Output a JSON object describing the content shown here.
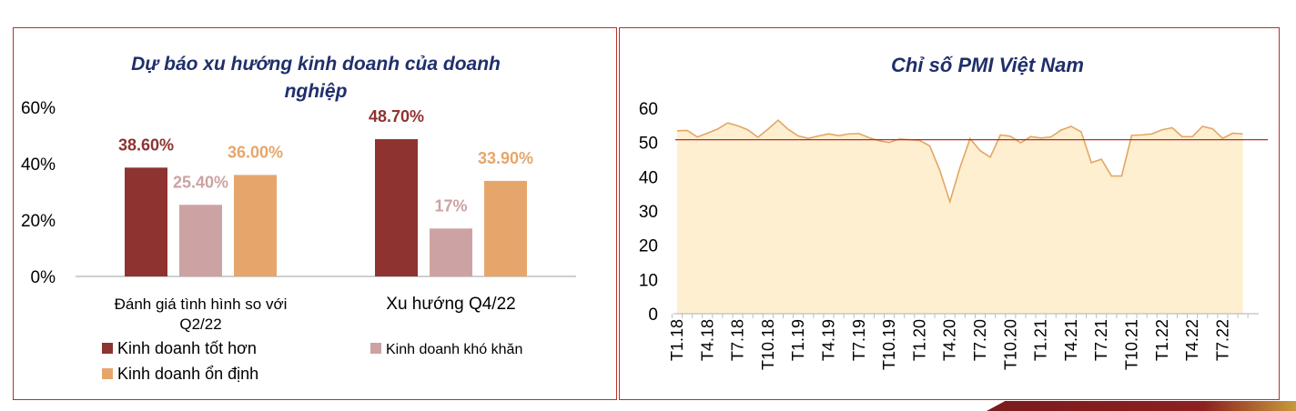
{
  "chart_data": [
    {
      "type": "bar",
      "title": "Dự báo xu hướng kinh doanh của doanh nghiệp",
      "title_lines": [
        "Dự báo xu hướng kinh doanh của doanh",
        "nghiệp"
      ],
      "categories": [
        "Đánh giá tình hình so với Q2/22",
        "Xu hướng Q4/22"
      ],
      "category_lines": [
        [
          "Đánh giá tình hình so với",
          "Q2/22"
        ],
        [
          "Xu hướng Q4/22"
        ]
      ],
      "series": [
        {
          "name": "Kinh doanh tốt hơn",
          "values": [
            38.6,
            48.7
          ],
          "labels": [
            "38.60%",
            "48.70%"
          ],
          "color": "#8e3330"
        },
        {
          "name": "Kinh doanh khó khăn",
          "values": [
            25.4,
            17
          ],
          "labels": [
            "25.40%",
            "17%"
          ],
          "color": "#cda2a2"
        },
        {
          "name": "Kinh doanh ổn định",
          "values": [
            36.0,
            33.9
          ],
          "labels": [
            "36.00%",
            "33.90%"
          ],
          "color": "#e6a66b"
        }
      ],
      "yticks": [
        "0%",
        "20%",
        "40%",
        "60%"
      ],
      "ylim": [
        0,
        60
      ],
      "legend_position": "bottom",
      "grid": false
    },
    {
      "type": "area",
      "title": "Chỉ số PMI Việt Nam",
      "x_tick_labels": [
        "T1.18",
        "T4.18",
        "T7.18",
        "T10.18",
        "T1.19",
        "T4.19",
        "T7.19",
        "T10.19",
        "T1.20",
        "T4.20",
        "T7.20",
        "T10.20",
        "T1.21",
        "T4.21",
        "T7.21",
        "T10.21",
        "T1.22",
        "T4.22",
        "T7.22"
      ],
      "x_months": [
        "T1.18",
        "T2.18",
        "T3.18",
        "T4.18",
        "T5.18",
        "T6.18",
        "T7.18",
        "T8.18",
        "T9.18",
        "T10.18",
        "T11.18",
        "T12.18",
        "T1.19",
        "T2.19",
        "T3.19",
        "T4.19",
        "T5.19",
        "T6.19",
        "T7.19",
        "T8.19",
        "T9.19",
        "T10.19",
        "T11.19",
        "T12.19",
        "T1.20",
        "T2.20",
        "T3.20",
        "T4.20",
        "T5.20",
        "T6.20",
        "T7.20",
        "T8.20",
        "T9.20",
        "T10.20",
        "T11.20",
        "T12.20",
        "T1.21",
        "T2.21",
        "T3.21",
        "T4.21",
        "T5.21",
        "T6.21",
        "T7.21",
        "T8.21",
        "T9.21",
        "T10.21",
        "T11.21",
        "T12.21",
        "T1.22",
        "T2.22",
        "T3.22",
        "T4.22",
        "T5.22",
        "T6.22",
        "T7.22",
        "T8.22",
        "T9.22"
      ],
      "values": [
        53.4,
        53.5,
        51.6,
        52.7,
        53.9,
        55.7,
        54.9,
        53.7,
        51.5,
        53.9,
        56.5,
        53.8,
        51.9,
        51.2,
        51.9,
        52.5,
        52.0,
        52.5,
        52.6,
        51.4,
        50.5,
        50.0,
        51.0,
        50.8,
        50.6,
        49.0,
        41.9,
        32.7,
        42.7,
        51.1,
        47.6,
        45.7,
        52.2,
        51.8,
        49.9,
        51.7,
        51.3,
        51.6,
        53.6,
        54.7,
        53.1,
        44.1,
        45.1,
        40.2,
        40.2,
        52.1,
        52.2,
        52.5,
        53.7,
        54.3,
        51.7,
        51.7,
        54.7,
        54.0,
        51.2,
        52.7,
        52.5
      ],
      "reference_line": 50.8,
      "yticks": [
        "0",
        "10",
        "20",
        "30",
        "40",
        "50",
        "60"
      ],
      "ylim": [
        0,
        60
      ],
      "colors": {
        "fill": "#fdefcf",
        "line": "#e3a665",
        "reference": "#c0282a",
        "axis": "#bfbfbf"
      },
      "legend_position": "none",
      "grid": false
    }
  ]
}
